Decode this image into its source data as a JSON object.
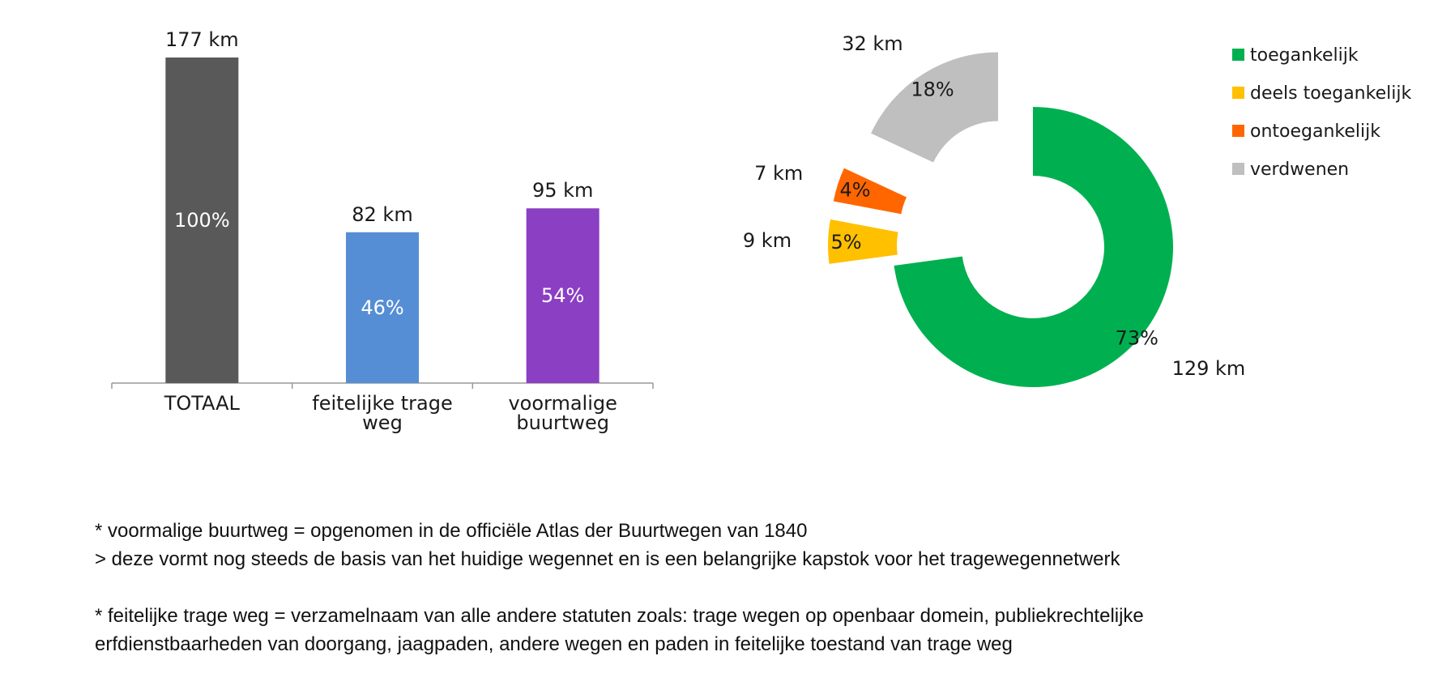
{
  "chart_data": [
    {
      "type": "bar",
      "categories": [
        [
          "TOTAAL"
        ],
        [
          "feitelijke trage",
          "weg"
        ],
        [
          "voormalige",
          "buurtweg"
        ]
      ],
      "values": [
        177,
        82,
        95
      ],
      "value_labels": [
        "177 km",
        "82 km",
        "95 km"
      ],
      "pct_labels": [
        "100%",
        "46%",
        "54%"
      ],
      "colors": [
        "#595959",
        "#558ED5",
        "#8B3FC3"
      ],
      "ylim": [
        0,
        177
      ]
    },
    {
      "type": "pie",
      "variant": "exploded-donut",
      "slices": [
        {
          "name": "toegankelijk",
          "value": 129,
          "value_label": "129 km",
          "pct_label": "73%",
          "color": "#00B050",
          "exploded": false
        },
        {
          "name": "deels toegankelijk",
          "value": 9,
          "value_label": "9 km",
          "pct_label": "5%",
          "color": "#FFC000",
          "exploded": true
        },
        {
          "name": "ontoegankelijk",
          "value": 7,
          "value_label": "7 km",
          "pct_label": "4%",
          "color": "#FF6600",
          "exploded": true
        },
        {
          "name": "verdwenen",
          "value": 32,
          "value_label": "32 km",
          "pct_label": "18%",
          "color": "#BFBFBF",
          "exploded": true
        }
      ],
      "legend": [
        "toegankelijk",
        "deels toegankelijk",
        "ontoegankelijk",
        "verdwenen"
      ],
      "legend_position": "top-right"
    }
  ],
  "notes": {
    "line1": "* voormalige buurtweg = opgenomen in de officiële Atlas der Buurtwegen van 1840",
    "line2": "> deze vormt nog steeds de basis van het huidige wegennet en is een belangrijke kapstok voor het tragewegennetwerk",
    "line3": "* feitelijke trage weg = verzamelnaam van alle andere statuten zoals: trage wegen op openbaar domein, publiekrechtelijke",
    "line4": "erfdienstbaarheden van doorgang, jaagpaden, andere wegen en paden in feitelijke toestand van trage weg"
  }
}
